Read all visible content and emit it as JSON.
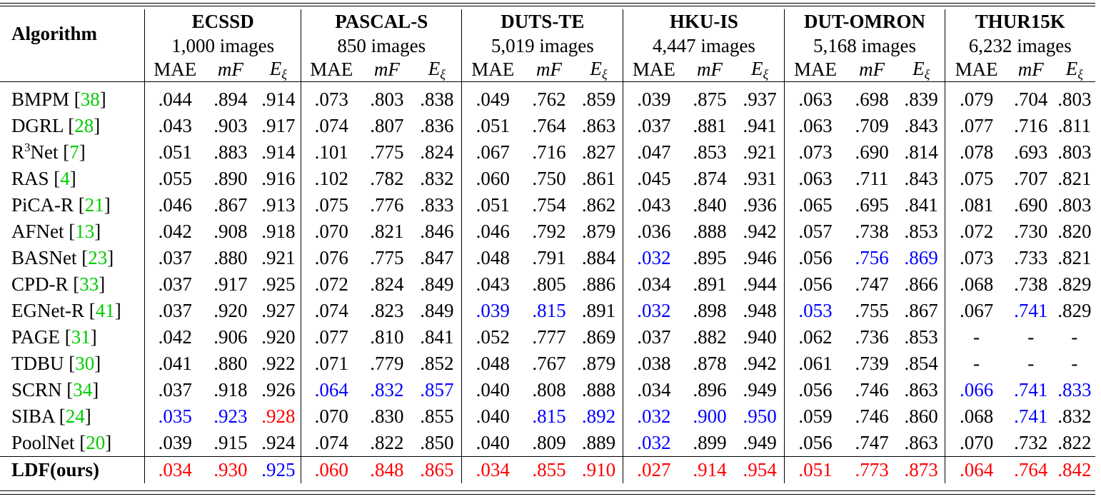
{
  "header": {
    "algorithm_label": "Algorithm",
    "metric_labels": {
      "mae": "MAE",
      "mf_m": "m",
      "mf_F": "F",
      "e_E": "E",
      "e_sub": "ξ"
    },
    "datasets": [
      {
        "name": "ECSSD",
        "images": "1,000 images"
      },
      {
        "name": "PASCAL-S",
        "images": "850 images"
      },
      {
        "name": "DUTS-TE",
        "images": "5,019 images"
      },
      {
        "name": "HKU-IS",
        "images": "4,447 images"
      },
      {
        "name": "DUT-OMRON",
        "images": "5,168 images"
      },
      {
        "name": "THUR15K",
        "images": "6,232 images"
      }
    ]
  },
  "colors": {
    "ref": "#00cc00",
    "second_best": "#0000ff",
    "best": "#ff0000"
  },
  "rows": [
    {
      "name": "BMPM",
      "sup": "",
      "name_rest": "",
      "ref": "38",
      "values": [
        ".044",
        ".894",
        ".914",
        ".073",
        ".803",
        ".838",
        ".049",
        ".762",
        ".859",
        ".039",
        ".875",
        ".937",
        ".063",
        ".698",
        ".839",
        ".079",
        ".704",
        ".803"
      ],
      "hl": [
        "",
        "",
        "",
        "",
        "",
        "",
        "",
        "",
        "",
        "",
        "",
        "",
        "",
        "",
        "",
        "",
        "",
        ""
      ]
    },
    {
      "name": "DGRL",
      "sup": "",
      "name_rest": "",
      "ref": "28",
      "values": [
        ".043",
        ".903",
        ".917",
        ".074",
        ".807",
        ".836",
        ".051",
        ".764",
        ".863",
        ".037",
        ".881",
        ".941",
        ".063",
        ".709",
        ".843",
        ".077",
        ".716",
        ".811"
      ],
      "hl": [
        "",
        "",
        "",
        "",
        "",
        "",
        "",
        "",
        "",
        "",
        "",
        "",
        "",
        "",
        "",
        "",
        "",
        ""
      ]
    },
    {
      "name": "R",
      "sup": "3",
      "name_rest": "Net",
      "ref": "7",
      "values": [
        ".051",
        ".883",
        ".914",
        ".101",
        ".775",
        ".824",
        ".067",
        ".716",
        ".827",
        ".047",
        ".853",
        ".921",
        ".073",
        ".690",
        ".814",
        ".078",
        ".693",
        ".803"
      ],
      "hl": [
        "",
        "",
        "",
        "",
        "",
        "",
        "",
        "",
        "",
        "",
        "",
        "",
        "",
        "",
        "",
        "",
        "",
        ""
      ]
    },
    {
      "name": "RAS",
      "sup": "",
      "name_rest": "",
      "ref": "4",
      "values": [
        ".055",
        ".890",
        ".916",
        ".102",
        ".782",
        ".832",
        ".060",
        ".750",
        ".861",
        ".045",
        ".874",
        ".931",
        ".063",
        ".711",
        ".843",
        ".075",
        ".707",
        ".821"
      ],
      "hl": [
        "",
        "",
        "",
        "",
        "",
        "",
        "",
        "",
        "",
        "",
        "",
        "",
        "",
        "",
        "",
        "",
        "",
        ""
      ]
    },
    {
      "name": "PiCA-R",
      "sup": "",
      "name_rest": "",
      "ref": "21",
      "values": [
        ".046",
        ".867",
        ".913",
        ".075",
        ".776",
        ".833",
        ".051",
        ".754",
        ".862",
        ".043",
        ".840",
        ".936",
        ".065",
        ".695",
        ".841",
        ".081",
        ".690",
        ".803"
      ],
      "hl": [
        "",
        "",
        "",
        "",
        "",
        "",
        "",
        "",
        "",
        "",
        "",
        "",
        "",
        "",
        "",
        "",
        "",
        ""
      ]
    },
    {
      "name": "AFNet",
      "sup": "",
      "name_rest": "",
      "ref": "13",
      "values": [
        ".042",
        ".908",
        ".918",
        ".070",
        ".821",
        ".846",
        ".046",
        ".792",
        ".879",
        ".036",
        ".888",
        ".942",
        ".057",
        ".738",
        ".853",
        ".072",
        ".730",
        ".820"
      ],
      "hl": [
        "",
        "",
        "",
        "",
        "",
        "",
        "",
        "",
        "",
        "",
        "",
        "",
        "",
        "",
        "",
        "",
        "",
        ""
      ]
    },
    {
      "name": "BASNet",
      "sup": "",
      "name_rest": "",
      "ref": "23",
      "values": [
        ".037",
        ".880",
        ".921",
        ".076",
        ".775",
        ".847",
        ".048",
        ".791",
        ".884",
        ".032",
        ".895",
        ".946",
        ".056",
        ".756",
        ".869",
        ".073",
        ".733",
        ".821"
      ],
      "hl": [
        "",
        "",
        "",
        "",
        "",
        "",
        "",
        "",
        "",
        "b",
        "",
        "",
        "",
        "b",
        "b",
        "",
        "",
        ""
      ]
    },
    {
      "name": "CPD-R",
      "sup": "",
      "name_rest": "",
      "ref": "33",
      "values": [
        ".037",
        ".917",
        ".925",
        ".072",
        ".824",
        ".849",
        ".043",
        ".805",
        ".886",
        ".034",
        ".891",
        ".944",
        ".056",
        ".747",
        ".866",
        ".068",
        ".738",
        ".829"
      ],
      "hl": [
        "",
        "",
        "",
        "",
        "",
        "",
        "",
        "",
        "",
        "",
        "",
        "",
        "",
        "",
        "",
        "",
        "",
        ""
      ]
    },
    {
      "name": "EGNet-R",
      "sup": "",
      "name_rest": "",
      "ref": "41",
      "values": [
        ".037",
        ".920",
        ".927",
        ".074",
        ".823",
        ".849",
        ".039",
        ".815",
        ".891",
        ".032",
        ".898",
        ".948",
        ".053",
        ".755",
        ".867",
        ".067",
        ".741",
        ".829"
      ],
      "hl": [
        "",
        "",
        "",
        "",
        "",
        "",
        "b",
        "b",
        "",
        "b",
        "",
        "",
        "b",
        "",
        "",
        "",
        "b",
        ""
      ]
    },
    {
      "name": "PAGE",
      "sup": "",
      "name_rest": "",
      "ref": "31",
      "values": [
        ".042",
        ".906",
        ".920",
        ".077",
        ".810",
        ".841",
        ".052",
        ".777",
        ".869",
        ".037",
        ".882",
        ".940",
        ".062",
        ".736",
        ".853",
        "-",
        "-",
        "-"
      ],
      "hl": [
        "",
        "",
        "",
        "",
        "",
        "",
        "",
        "",
        "",
        "",
        "",
        "",
        "",
        "",
        "",
        "",
        "",
        ""
      ]
    },
    {
      "name": "TDBU",
      "sup": "",
      "name_rest": "",
      "ref": "30",
      "values": [
        ".041",
        ".880",
        ".922",
        ".071",
        ".779",
        ".852",
        ".048",
        ".767",
        ".879",
        ".038",
        ".878",
        ".942",
        ".061",
        ".739",
        ".854",
        "-",
        "-",
        "-"
      ],
      "hl": [
        "",
        "",
        "",
        "",
        "",
        "",
        "",
        "",
        "",
        "",
        "",
        "",
        "",
        "",
        "",
        "",
        "",
        ""
      ]
    },
    {
      "name": "SCRN",
      "sup": "",
      "name_rest": "",
      "ref": "34",
      "values": [
        ".037",
        ".918",
        ".926",
        ".064",
        ".832",
        ".857",
        ".040",
        ".808",
        ".888",
        ".034",
        ".896",
        ".949",
        ".056",
        ".746",
        ".863",
        ".066",
        ".741",
        ".833"
      ],
      "hl": [
        "",
        "",
        "",
        "b",
        "b",
        "b",
        "",
        "",
        "",
        "",
        "",
        "",
        "",
        "",
        "",
        "b",
        "b",
        "b"
      ]
    },
    {
      "name": "SIBA",
      "sup": "",
      "name_rest": "",
      "ref": "24",
      "values": [
        ".035",
        ".923",
        ".928",
        ".070",
        ".830",
        ".855",
        ".040",
        ".815",
        ".892",
        ".032",
        ".900",
        ".950",
        ".059",
        ".746",
        ".860",
        ".068",
        ".741",
        ".832"
      ],
      "hl": [
        "b",
        "b",
        "r",
        "",
        "",
        "",
        "",
        "b",
        "b",
        "b",
        "b",
        "b",
        "",
        "",
        "",
        "",
        "b",
        ""
      ]
    },
    {
      "name": "PoolNet",
      "sup": "",
      "name_rest": "",
      "ref": "20",
      "values": [
        ".039",
        ".915",
        ".924",
        ".074",
        ".822",
        ".850",
        ".040",
        ".809",
        ".889",
        ".032",
        ".899",
        ".949",
        ".056",
        ".747",
        ".863",
        ".070",
        ".732",
        ".822"
      ],
      "hl": [
        "",
        "",
        "",
        "",
        "",
        "",
        "",
        "",
        "",
        "b",
        "",
        "",
        "",
        "",
        "",
        "",
        "",
        ""
      ]
    },
    {
      "name": "LDF(ours)",
      "sup": "",
      "name_rest": "",
      "ref": "",
      "values": [
        ".034",
        ".930",
        ".925",
        ".060",
        ".848",
        ".865",
        ".034",
        ".855",
        ".910",
        ".027",
        ".914",
        ".954",
        ".051",
        ".773",
        ".873",
        ".064",
        ".764",
        ".842"
      ],
      "hl": [
        "r",
        "r",
        "b",
        "r",
        "r",
        "r",
        "r",
        "r",
        "r",
        "r",
        "r",
        "r",
        "r",
        "r",
        "r",
        "r",
        "r",
        "r"
      ]
    }
  ]
}
